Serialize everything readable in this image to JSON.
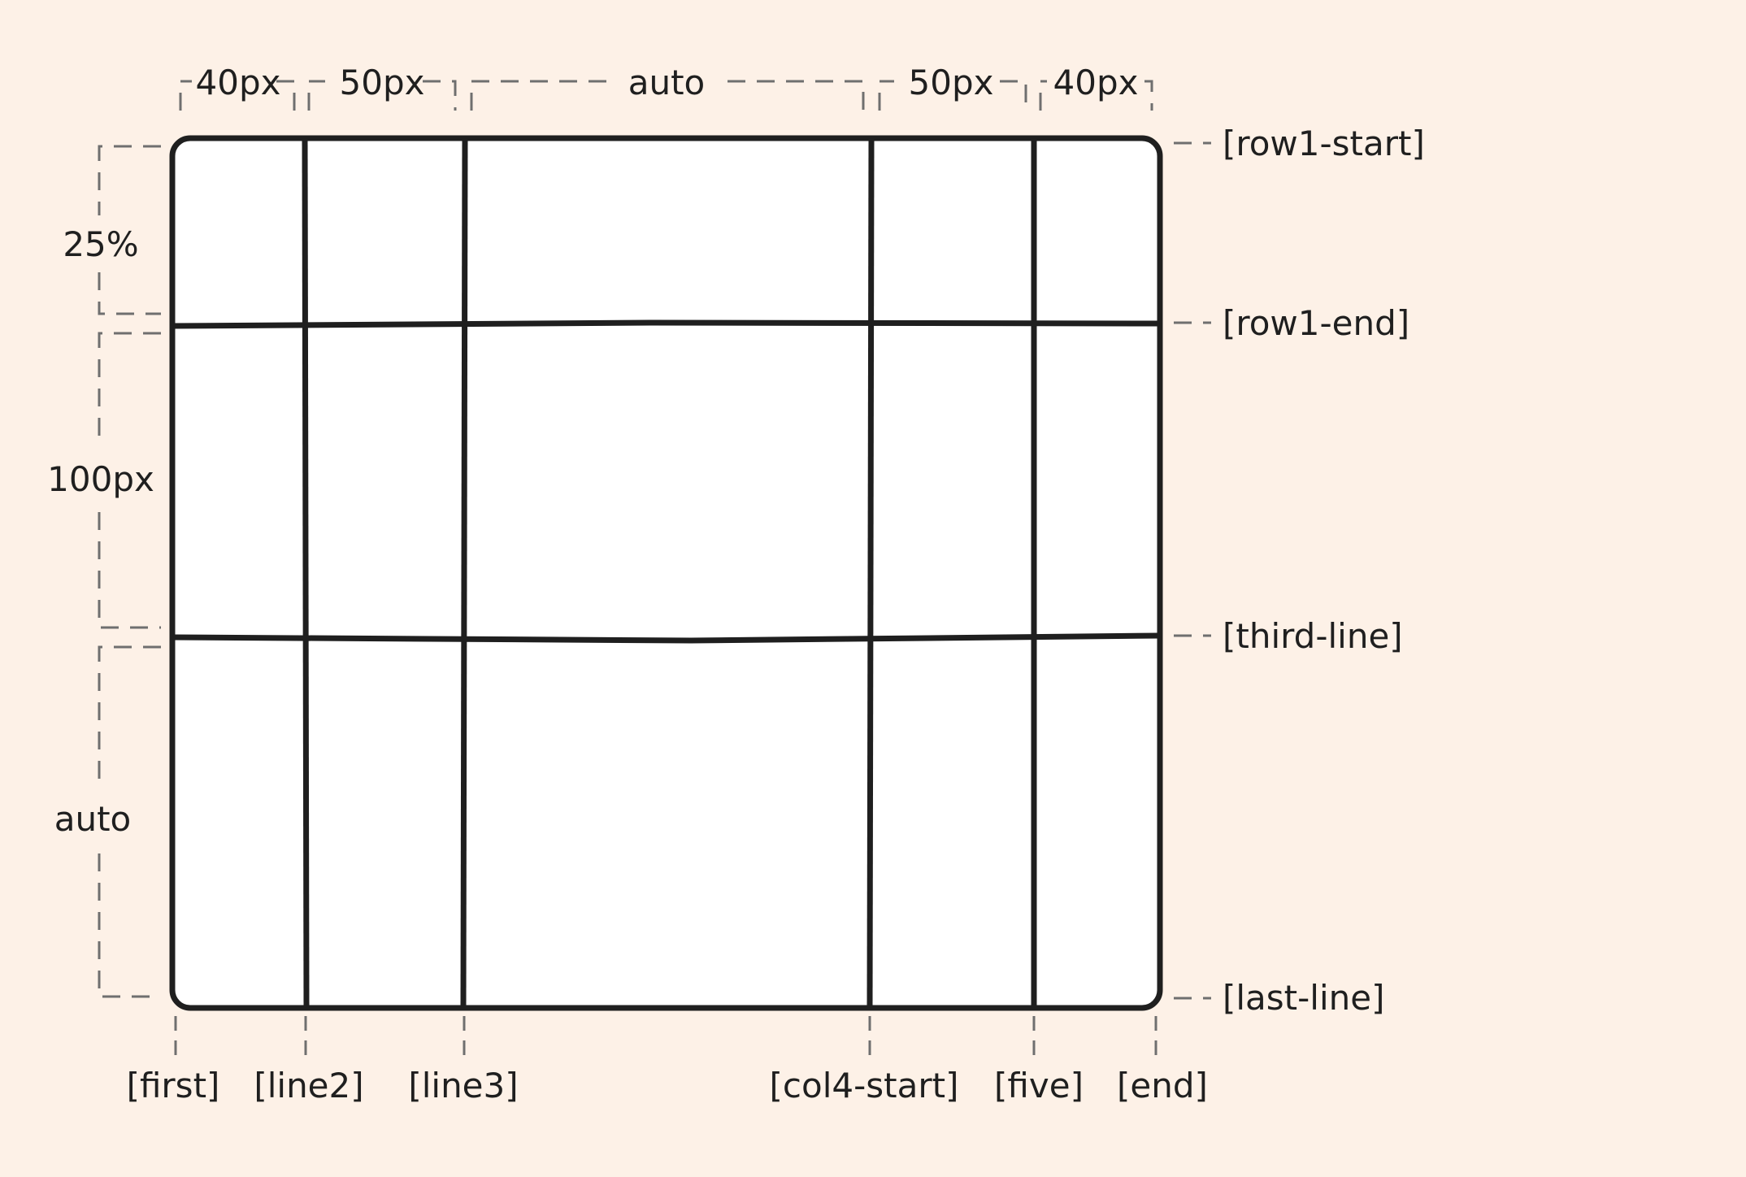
{
  "diagram": {
    "column_sizes": [
      {
        "label": "40px"
      },
      {
        "label": "50px"
      },
      {
        "label": "auto"
      },
      {
        "label": "50px"
      },
      {
        "label": "40px"
      }
    ],
    "row_sizes": [
      {
        "label": "25%"
      },
      {
        "label": "100px"
      },
      {
        "label": "auto"
      }
    ],
    "column_line_names": [
      "[first]",
      "[line2]",
      "[line3]",
      "[col4-start]",
      "[five]",
      "[end]"
    ],
    "row_line_names": [
      "[row1-start]",
      "[row1-end]",
      "[third-line]",
      "[last-line]"
    ]
  },
  "colors": {
    "background": "#fdf1e7",
    "grid_fill": "#ffffff",
    "stroke": "#1f1f1f",
    "guide": "#6f6f6f"
  }
}
